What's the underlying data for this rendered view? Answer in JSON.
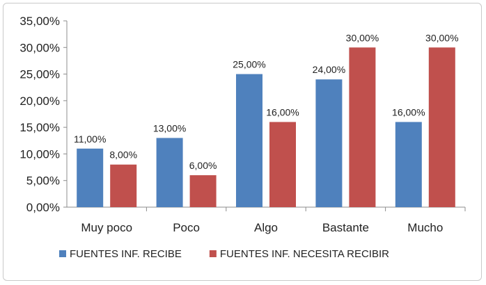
{
  "chart_data": {
    "type": "bar",
    "categories": [
      "Muy poco",
      "Poco",
      "Algo",
      "Bastante",
      "Mucho"
    ],
    "series": [
      {
        "name": "FUENTES INF. RECIBE",
        "color": "#4F81BD",
        "values": [
          11,
          13,
          25,
          24,
          16
        ],
        "labels": [
          "11,00%",
          "13,00%",
          "25,00%",
          "24,00%",
          "16,00%"
        ]
      },
      {
        "name": "FUENTES INF. NECESITA RECIBIR",
        "color": "#C0504D",
        "values": [
          8,
          6,
          16,
          30,
          30
        ],
        "labels": [
          "8,00%",
          "6,00%",
          "16,00%",
          "30,00%",
          "30,00%"
        ]
      }
    ],
    "yticks": [
      "0,00%",
      "5,00%",
      "10,00%",
      "15,00%",
      "20,00%",
      "25,00%",
      "30,00%",
      "35,00%"
    ],
    "ylim": [
      0,
      35
    ],
    "y_step": 5,
    "grid": false,
    "legend_position": "bottom"
  }
}
